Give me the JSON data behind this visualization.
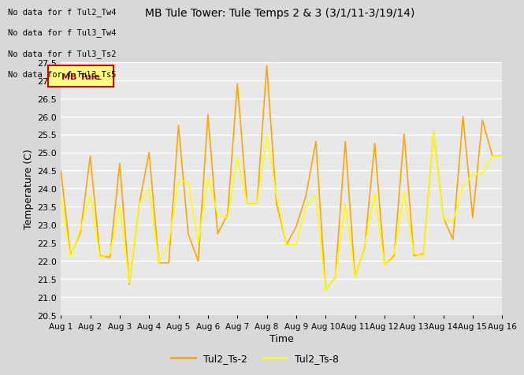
{
  "title": "MB Tule Tower: Tule Temps 2 & 3 (3/1/11-3/19/14)",
  "xlabel": "Time",
  "ylabel": "Temperature (C)",
  "ylim": [
    20.5,
    27.5
  ],
  "xlim": [
    0,
    15
  ],
  "fig_bg_color": "#d8d8d8",
  "plot_bg_color": "#e8e8e8",
  "grid_color": "#ffffff",
  "series1_color": "#FFA500",
  "series2_color": "#FFFF00",
  "series1_label": "Tul2_Ts-2",
  "series2_label": "Tul2_Ts-8",
  "xtick_labels": [
    "Aug 1",
    "Aug 2",
    "Aug 3",
    "Aug 4",
    "Aug 5",
    "Aug 6",
    "Aug 7",
    "Aug 8",
    "Aug 9",
    "Aug 10",
    "Aug 11",
    "Aug 12",
    "Aug 13",
    "Aug 14",
    "Aug 15",
    "Aug 16"
  ],
  "ytick_values": [
    20.5,
    21.0,
    21.5,
    22.0,
    22.5,
    23.0,
    23.5,
    24.0,
    24.5,
    25.0,
    25.5,
    26.0,
    26.5,
    27.0,
    27.5
  ],
  "nodata_lines": [
    "No data for f Tul2_Tw4",
    "No data for f Tul3_Tw4",
    "No data for f Tul3_Ts2",
    "No data for f Tul3_Ts5"
  ],
  "series1_x": [
    0,
    0.33,
    0.67,
    1.0,
    1.33,
    1.67,
    2.0,
    2.33,
    2.67,
    3.0,
    3.33,
    3.67,
    4.0,
    4.33,
    4.67,
    5.0,
    5.33,
    5.67,
    6.0,
    6.33,
    6.67,
    7.0,
    7.33,
    7.67,
    8.0,
    8.33,
    8.67,
    9.0,
    9.33,
    9.67,
    10.0,
    10.33,
    10.67,
    11.0,
    11.33,
    11.67,
    12.0,
    12.33,
    12.67,
    13.0,
    13.33,
    13.67,
    14.0,
    14.33,
    14.67,
    15.0
  ],
  "series1_y": [
    24.5,
    22.15,
    22.8,
    24.9,
    22.15,
    22.1,
    24.7,
    21.35,
    23.6,
    25.0,
    21.95,
    21.95,
    25.75,
    22.75,
    22.0,
    26.05,
    22.75,
    23.3,
    26.9,
    23.6,
    23.6,
    27.4,
    23.6,
    22.45,
    22.95,
    23.8,
    25.3,
    21.2,
    21.55,
    25.3,
    21.55,
    22.4,
    25.25,
    21.9,
    22.15,
    25.5,
    22.15,
    22.2,
    25.6,
    23.2,
    22.6,
    26.0,
    23.2,
    25.9,
    24.9,
    24.9
  ],
  "series2_x": [
    0,
    0.33,
    0.67,
    1.0,
    1.33,
    1.67,
    2.0,
    2.33,
    2.67,
    3.0,
    3.33,
    3.67,
    4.0,
    4.33,
    4.67,
    5.0,
    5.33,
    5.67,
    6.0,
    6.33,
    6.67,
    7.0,
    7.33,
    7.67,
    8.0,
    8.33,
    8.67,
    9.0,
    9.33,
    9.67,
    10.0,
    10.33,
    10.67,
    11.0,
    11.33,
    11.67,
    12.0,
    12.33,
    12.67,
    13.0,
    13.33,
    13.67,
    14.0,
    14.33,
    14.67,
    15.0
  ],
  "series2_y": [
    23.8,
    22.1,
    22.9,
    23.8,
    22.1,
    22.2,
    23.5,
    21.4,
    23.6,
    24.0,
    21.95,
    22.5,
    24.2,
    24.2,
    22.5,
    24.3,
    23.3,
    23.2,
    24.85,
    23.6,
    23.6,
    25.45,
    23.8,
    22.45,
    22.45,
    23.5,
    23.8,
    21.2,
    21.55,
    23.6,
    21.55,
    22.45,
    23.85,
    21.9,
    22.2,
    23.9,
    22.2,
    22.15,
    25.6,
    23.15,
    23.1,
    24.05,
    24.4,
    24.4,
    24.9,
    24.9
  ],
  "tooltip_text": "MB Tule",
  "tooltip_bg": "#ffff80",
  "tooltip_border": "#cc0000"
}
